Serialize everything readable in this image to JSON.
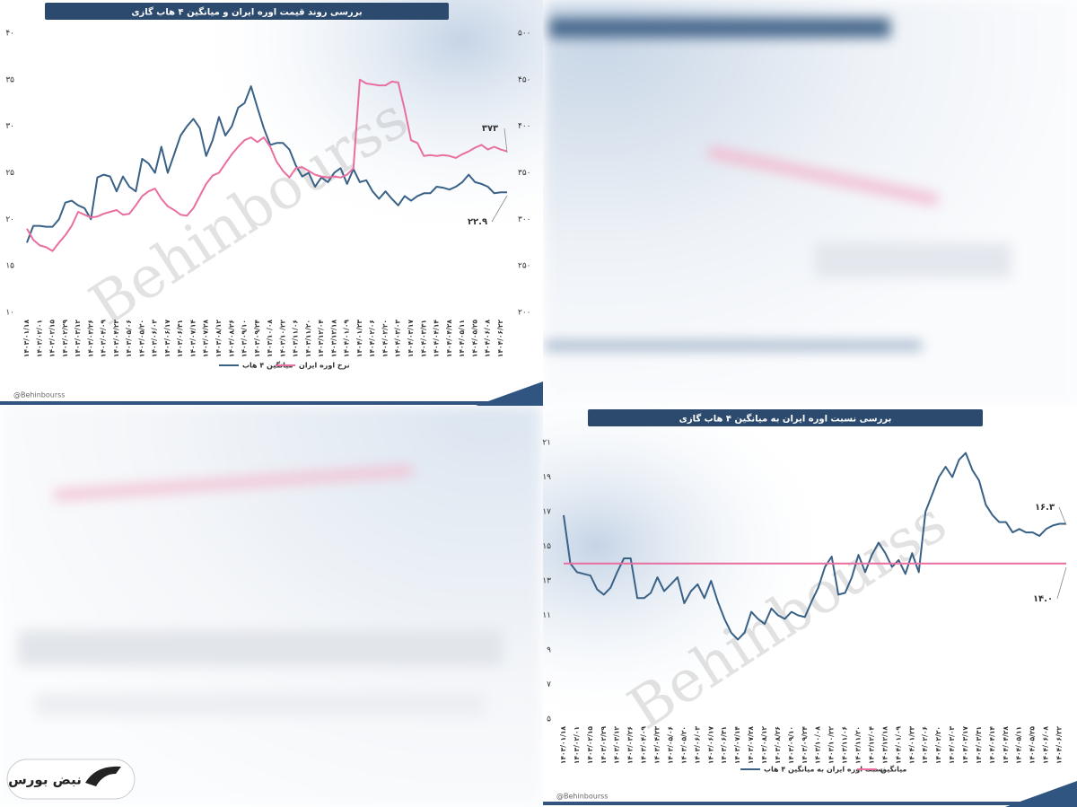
{
  "chart_data": [
    {
      "type": "line",
      "title": "بررسی روند قیمت اوره ایران و میانگین ۴ هاب گازی",
      "categories": [
        "۱۴۰۳/۰۱/۱۸",
        null,
        "۱۴۰۳/۰۲/۰۱",
        null,
        "۱۴۰۳/۰۲/۱۵",
        null,
        "۱۴۰۳/۰۲/۲۹",
        null,
        "۱۴۰۳/۰۳/۱۲",
        null,
        "۱۴۰۳/۰۳/۲۶",
        null,
        "۱۴۰۳/۰۴/۰۹",
        null,
        "۱۴۰۳/۰۴/۲۳",
        null,
        "۱۴۰۳/۰۵/۰۶",
        null,
        "۱۴۰۳/۰۵/۲۰",
        null,
        "۱۴۰۳/۰۶/۰۳",
        null,
        "۱۴۰۳/۰۶/۱۷",
        null,
        "۱۴۰۳/۰۶/۳۱",
        null,
        "۱۴۰۳/۰۷/۱۴",
        null,
        "۱۴۰۳/۰۷/۲۸",
        null,
        "۱۴۰۳/۰۸/۱۲",
        null,
        "۱۴۰۳/۰۸/۲۶",
        null,
        "۱۴۰۳/۰۹/۱۰",
        null,
        "۱۴۰۳/۰۹/۲۴",
        null,
        "۱۴۰۳/۱۰/۰۸",
        null,
        "۱۴۰۳/۱۰/۲۲",
        null,
        "۱۴۰۳/۱۱/۰۶",
        null,
        "۱۴۰۳/۱۱/۲۰",
        null,
        "۱۴۰۳/۱۲/۰۴",
        null,
        "۱۴۰۳/۱۲/۱۸",
        null,
        "۱۴۰۴/۰۱/۰۹",
        null,
        "۱۴۰۴/۰۱/۲۳",
        null,
        "۱۴۰۴/۰۲/۰۶",
        null,
        "۱۴۰۴/۰۲/۲۰",
        null,
        "۱۴۰۴/۰۳/۰۳",
        null,
        "۱۴۰۴/۰۳/۱۷",
        null,
        "۱۴۰۴/۰۳/۳۱",
        null,
        "۱۴۰۴/۰۴/۱۴",
        null,
        "۱۴۰۴/۰۴/۲۸",
        null,
        "۱۴۰۴/۰۵/۱۱",
        null,
        "۱۴۰۴/۰۵/۲۵",
        null,
        "۱۴۰۴/۰۶/۰۸",
        null,
        "۱۴۰۴/۰۶/۲۲",
        null
      ],
      "series": [
        {
          "name": "میانگین ۴ هاب",
          "color": "#3a6186",
          "values": [
            17.5,
            19.3,
            19.3,
            19.2,
            19.2,
            20,
            21.8,
            22,
            21.5,
            21.2,
            20,
            24.5,
            24.8,
            24.6,
            23,
            24.6,
            23.5,
            23,
            26.5,
            26,
            25,
            27.8,
            25,
            27,
            29,
            30,
            30.8,
            29.8,
            26.8,
            28.5,
            31,
            29,
            30,
            32,
            32.5,
            34.3,
            32,
            29.8,
            28,
            28.2,
            28.2,
            27.5,
            25.8,
            24.6,
            25,
            23.5,
            24.5,
            24,
            25,
            25.5,
            23.8,
            25.4,
            24,
            24.2,
            23,
            22.2,
            23,
            22.2,
            21.5,
            22.5,
            22,
            22.5,
            22.8,
            22.8,
            23.5,
            23.4,
            23.2,
            23.5,
            24,
            24.8,
            24,
            23.8,
            23.5,
            22.8,
            22.9,
            22.9
          ]
        },
        {
          "name": "نرخ اوره ایران",
          "color": "#e86fa0",
          "axis": "y2",
          "values": [
            290,
            278,
            272,
            270,
            266,
            275,
            283,
            293,
            308,
            305,
            302,
            303,
            306,
            308,
            310,
            305,
            306,
            315,
            325,
            330,
            333,
            322,
            314,
            310,
            305,
            304,
            312,
            325,
            338,
            347,
            350,
            360,
            370,
            378,
            385,
            388,
            383,
            388,
            378,
            362,
            352,
            345,
            355,
            356,
            352,
            348,
            346,
            345,
            346,
            345,
            348,
            355,
            450,
            446,
            445,
            444,
            444,
            448,
            447,
            418,
            385,
            382,
            368,
            369,
            368,
            369,
            368,
            366,
            370,
            373,
            377,
            380,
            375,
            378,
            375,
            373
          ]
        }
      ],
      "ylim": [
        10,
        40
      ],
      "yticks": [
        {
          "value": 10,
          "label": "۱۰"
        },
        {
          "value": 15,
          "label": "۱۵"
        },
        {
          "value": 20,
          "label": "۲۰"
        },
        {
          "value": 25,
          "label": "۲۵"
        },
        {
          "value": 30,
          "label": "۳۰"
        },
        {
          "value": 35,
          "label": "۳۵"
        },
        {
          "value": 40,
          "label": "۴۰"
        }
      ],
      "y2lim": [
        200,
        500
      ],
      "y2ticks": [
        {
          "value": 200,
          "label": "۲۰۰"
        },
        {
          "value": 250,
          "label": "۲۵۰"
        },
        {
          "value": 300,
          "label": "۳۰۰"
        },
        {
          "value": 350,
          "label": "۳۵۰"
        },
        {
          "value": 400,
          "label": "۴۰۰"
        },
        {
          "value": 450,
          "label": "۴۵۰"
        },
        {
          "value": 500,
          "label": "۵۰۰"
        }
      ],
      "annotations": [
        "۳۷۳",
        "۲۲.۹"
      ],
      "legend": "bottom",
      "grid": false
    },
    {
      "type": "line",
      "title": "بررسی نسبت اوره ایران به میانگین ۴ هاب گازی",
      "categories": [
        "۱۴۰۳/۰۱/۱۸",
        null,
        "۱۴۰۳/۰۲/۰۱",
        null,
        "۱۴۰۳/۰۲/۱۵",
        null,
        "۱۴۰۳/۰۲/۲۹",
        null,
        "۱۴۰۳/۰۳/۱۲",
        null,
        "۱۴۰۳/۰۳/۲۶",
        null,
        "۱۴۰۳/۰۴/۰۹",
        null,
        "۱۴۰۳/۰۴/۲۳",
        null,
        "۱۴۰۳/۰۵/۰۶",
        null,
        "۱۴۰۳/۰۵/۲۰",
        null,
        "۱۴۰۳/۰۶/۰۳",
        null,
        "۱۴۰۳/۰۶/۱۷",
        null,
        "۱۴۰۳/۰۶/۳۱",
        null,
        "۱۴۰۳/۰۷/۱۴",
        null,
        "۱۴۰۳/۰۷/۲۸",
        null,
        "۱۴۰۳/۰۸/۱۲",
        null,
        "۱۴۰۳/۰۸/۲۶",
        null,
        "۱۴۰۳/۰۹/۱۰",
        null,
        "۱۴۰۳/۰۹/۲۴",
        null,
        "۱۴۰۳/۱۰/۰۸",
        null,
        "۱۴۰۳/۱۰/۲۲",
        null,
        "۱۴۰۳/۱۱/۰۶",
        null,
        "۱۴۰۳/۱۱/۲۰",
        null,
        "۱۴۰۳/۱۲/۰۴",
        null,
        "۱۴۰۳/۱۲/۱۸",
        null,
        "۱۴۰۴/۰۱/۰۹",
        null,
        "۱۴۰۴/۰۱/۲۳",
        null,
        "۱۴۰۴/۰۲/۰۶",
        null,
        "۱۴۰۴/۰۲/۲۰",
        null,
        "۱۴۰۴/۰۳/۰۳",
        null,
        "۱۴۰۴/۰۳/۱۷",
        null,
        "۱۴۰۴/۰۳/۳۱",
        null,
        "۱۴۰۴/۰۴/۱۴",
        null,
        "۱۴۰۴/۰۴/۲۸",
        null,
        "۱۴۰۴/۰۵/۱۱",
        null,
        "۱۴۰۴/۰۵/۲۵",
        null,
        "۱۴۰۴/۰۶/۰۸",
        null,
        "۱۴۰۴/۰۶/۲۲",
        null
      ],
      "series": [
        {
          "name": "نسبت اوره ایران به میانگین ۴ هاب",
          "color": "#3a6186",
          "values": [
            16.8,
            14,
            13.5,
            13.4,
            13.3,
            12.5,
            12.2,
            12.6,
            13.5,
            14.3,
            14.3,
            12,
            12,
            12.3,
            13.2,
            12.4,
            12.8,
            13.2,
            11.7,
            12.4,
            12.8,
            12,
            13,
            11.8,
            10.8,
            10,
            9.6,
            10,
            11.2,
            10.8,
            10.5,
            11.4,
            11,
            10.8,
            11.2,
            11,
            10.9,
            11.8,
            12.6,
            13.8,
            14.4,
            12.2,
            12.3,
            13.2,
            14.5,
            13.5,
            14.5,
            15.2,
            14.6,
            13.8,
            14.2,
            13.4,
            14.6,
            13.5,
            17,
            18,
            19,
            19.6,
            19,
            20,
            20.4,
            19.4,
            18.8,
            17.4,
            16.8,
            16.4,
            16.4,
            15.8,
            16,
            15.8,
            15.8,
            15.6,
            16,
            16.2,
            16.3,
            16.3
          ]
        },
        {
          "name": "میانگین",
          "color": "#e86fa0",
          "values": [
            14,
            14,
            14,
            14,
            14,
            14,
            14,
            14,
            14,
            14,
            14,
            14,
            14,
            14,
            14,
            14,
            14,
            14,
            14,
            14,
            14,
            14,
            14,
            14,
            14,
            14,
            14,
            14,
            14,
            14,
            14,
            14,
            14,
            14,
            14,
            14,
            14,
            14,
            14,
            14,
            14,
            14,
            14,
            14,
            14,
            14,
            14,
            14,
            14,
            14,
            14,
            14,
            14,
            14,
            14,
            14,
            14,
            14,
            14,
            14,
            14,
            14,
            14,
            14,
            14,
            14,
            14,
            14,
            14,
            14,
            14,
            14,
            14,
            14,
            14,
            14
          ]
        }
      ],
      "ylim": [
        5,
        21
      ],
      "yticks": [
        {
          "value": 5,
          "label": "۵"
        },
        {
          "value": 7,
          "label": "۷"
        },
        {
          "value": 9,
          "label": "۹"
        },
        {
          "value": 11,
          "label": "۱۱"
        },
        {
          "value": 13,
          "label": "۱۳"
        },
        {
          "value": 15,
          "label": "۱۵"
        },
        {
          "value": 17,
          "label": "۱۷"
        },
        {
          "value": 19,
          "label": "۱۹"
        },
        {
          "value": 21,
          "label": "۲۱"
        }
      ],
      "annotations": [
        "۱۶.۳",
        "۱۴.۰"
      ],
      "legend": "bottom",
      "grid": false
    }
  ],
  "watermark": "Behinbourss",
  "footer": "@Behinbourss",
  "logo": "نبض بورس"
}
